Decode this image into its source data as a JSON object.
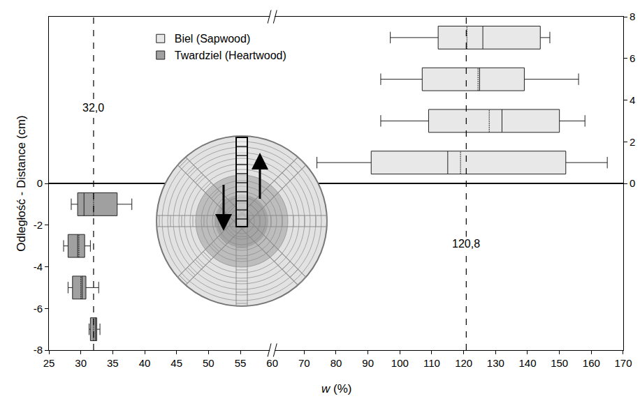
{
  "chart_data": {
    "type": "box",
    "orientation": "horizontal",
    "x_label": "w (%)",
    "y_label": "Odległość - Distance (cm)",
    "xlim": [
      25,
      60
    ],
    "xticks": [
      25,
      30,
      35,
      40,
      45,
      50,
      55,
      60
    ],
    "x2lim": [
      60,
      170
    ],
    "x2ticks": [
      70,
      80,
      90,
      100,
      110,
      120,
      130,
      140,
      150,
      160,
      170
    ],
    "ylim": [
      -8,
      8
    ],
    "yticks": [
      -8,
      -6,
      -4,
      -2,
      0
    ],
    "y2lim": [
      -8,
      8
    ],
    "y2ticks": [
      0,
      2,
      4,
      6,
      8
    ],
    "grid": false,
    "legend": "top left",
    "series": [
      {
        "name": "Biel (Sapwood)",
        "color": "#e8e8e8",
        "axis": "y2",
        "positions": [
          7,
          5,
          3,
          1
        ],
        "min": [
          97,
          94,
          94,
          74
        ],
        "q1": [
          112,
          107,
          109,
          91
        ],
        "median": [
          126,
          125,
          132,
          115
        ],
        "mean": [
          121,
          124.5,
          128,
          119
        ],
        "q3": [
          144,
          139,
          150,
          152
        ],
        "max": [
          147,
          156,
          158,
          165
        ]
      },
      {
        "name": "Twardziel (Heartwood)",
        "color": "#a0a0a0",
        "axis": "y",
        "positions": [
          -1,
          -3,
          -5,
          -7
        ],
        "min": [
          28.5,
          27.3,
          28,
          31.3
        ],
        "q1": [
          29.5,
          28,
          28.7,
          31.5
        ],
        "median": [
          30.5,
          29.5,
          30.2,
          32.3
        ],
        "mean": [
          32,
          29.7,
          30,
          32
        ],
        "q3": [
          35.7,
          30.6,
          30.8,
          32.5
        ],
        "max": [
          38,
          31.5,
          32.8,
          33
        ]
      }
    ],
    "reference_lines": [
      {
        "value": 32.0,
        "label": "32,0"
      },
      {
        "value": 120.8,
        "label": "120,8"
      }
    ]
  }
}
